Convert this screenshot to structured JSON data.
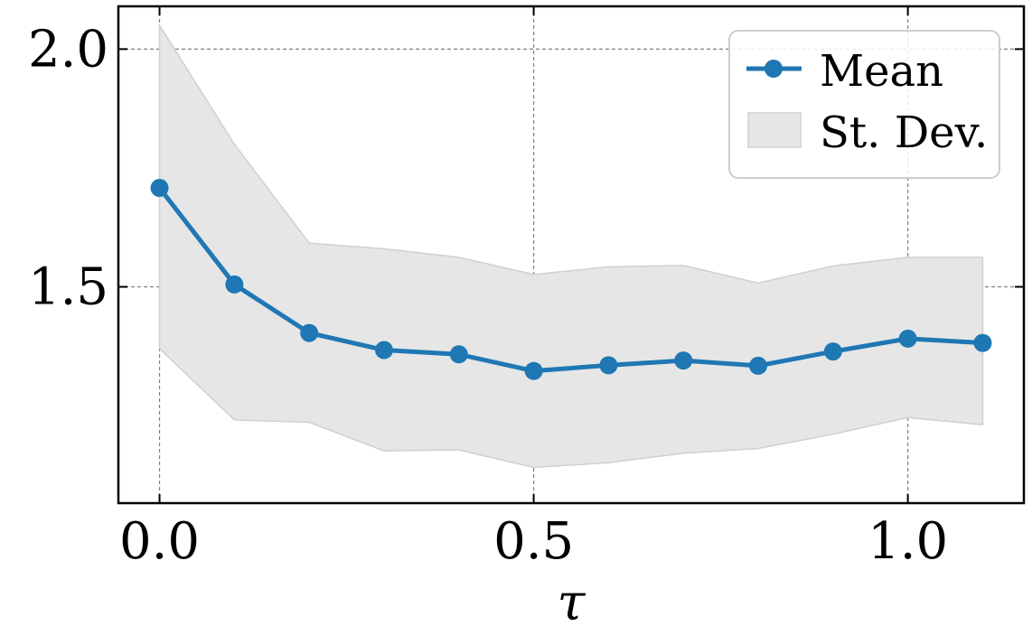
{
  "chart_data": {
    "type": "line",
    "title": "",
    "xlabel": "τ",
    "ylabel": "",
    "xlim": [
      -0.055,
      1.155
    ],
    "ylim": [
      1.045,
      2.09
    ],
    "grid": true,
    "legend_position": "top-right",
    "x_ticks": [
      {
        "value": 0.0,
        "label": "0.0"
      },
      {
        "value": 0.5,
        "label": "0.5"
      },
      {
        "value": 1.0,
        "label": "1.0"
      }
    ],
    "y_ticks": [
      {
        "value": 1.5,
        "label": "1.5"
      },
      {
        "value": 2.0,
        "label": "2.0"
      }
    ],
    "x": [
      0.0,
      0.1,
      0.2,
      0.3,
      0.4,
      0.5,
      0.6,
      0.7,
      0.8,
      0.9,
      1.0,
      1.1
    ],
    "series": [
      {
        "name": "Mean",
        "kind": "line-marker",
        "color": "#1f77b4",
        "values": [
          1.708,
          1.505,
          1.403,
          1.367,
          1.358,
          1.323,
          1.335,
          1.345,
          1.334,
          1.364,
          1.391,
          1.382
        ]
      },
      {
        "name": "St. Dev.",
        "kind": "band",
        "color": "#e6e6e6",
        "edge_color": "#d0d0d0",
        "upper": [
          2.05,
          1.8,
          1.592,
          1.58,
          1.562,
          1.526,
          1.542,
          1.545,
          1.508,
          1.544,
          1.562,
          1.562
        ],
        "lower": [
          1.37,
          1.22,
          1.215,
          1.155,
          1.157,
          1.12,
          1.13,
          1.15,
          1.16,
          1.19,
          1.225,
          1.21
        ]
      }
    ]
  }
}
